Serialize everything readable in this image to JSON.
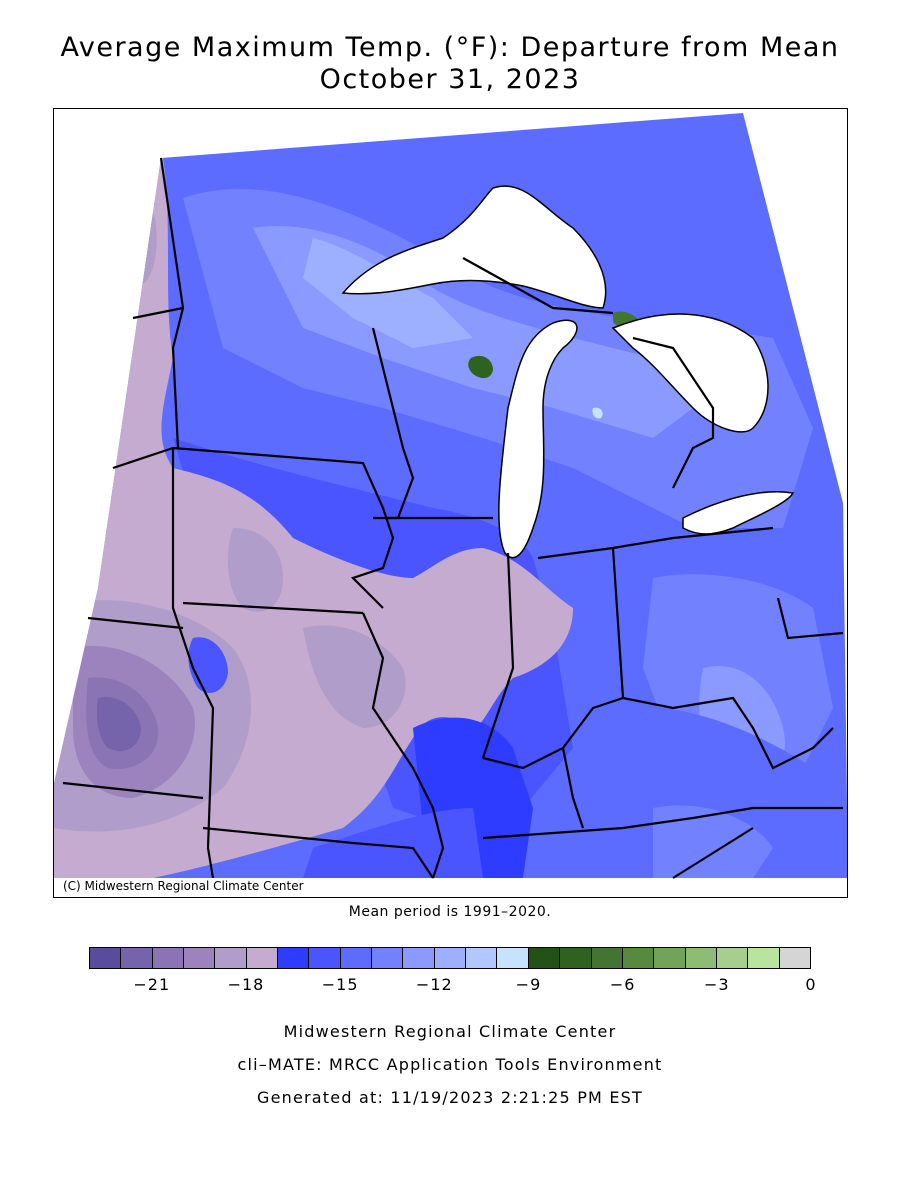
{
  "title": {
    "line1": "Average Maximum Temp. (°F): Departure from Mean",
    "line2": "October 31, 2023"
  },
  "map": {
    "credit": "(C) Midwestern Regional Climate Center",
    "mean_period": "Mean period is 1991–2020.",
    "regions_visible": [
      "Minnesota",
      "Wisconsin",
      "Michigan",
      "Iowa",
      "Illinois",
      "Indiana",
      "Ohio",
      "Missouri",
      "Kentucky"
    ],
    "water_bodies": [
      "Lake Superior",
      "Lake Michigan",
      "Lake Huron",
      "Lake Erie"
    ]
  },
  "legend": {
    "colors": [
      "#5a4c9c",
      "#7563ab",
      "#8a74b4",
      "#9c83bd",
      "#b19dc9",
      "#c6abd0",
      "#2e3cff",
      "#4a55ff",
      "#5c6cff",
      "#7282ff",
      "#8a9aff",
      "#9db0ff",
      "#b0c8ff",
      "#c5e2ff",
      "#235216",
      "#2e621f",
      "#427530",
      "#57893f",
      "#72a35a",
      "#8ebc73",
      "#a5cf8c",
      "#b7e5a0",
      "#d5d5d5"
    ],
    "ticks": [
      "−21",
      "−18",
      "−15",
      "−12",
      "−9",
      "−6",
      "−3",
      "0"
    ]
  },
  "footer": {
    "line1": "Midwestern Regional Climate Center",
    "line2": "cli–MATE: MRCC Application Tools Environment",
    "line3": "Generated at: 11/19/2023 2:21:25 PM EST"
  }
}
